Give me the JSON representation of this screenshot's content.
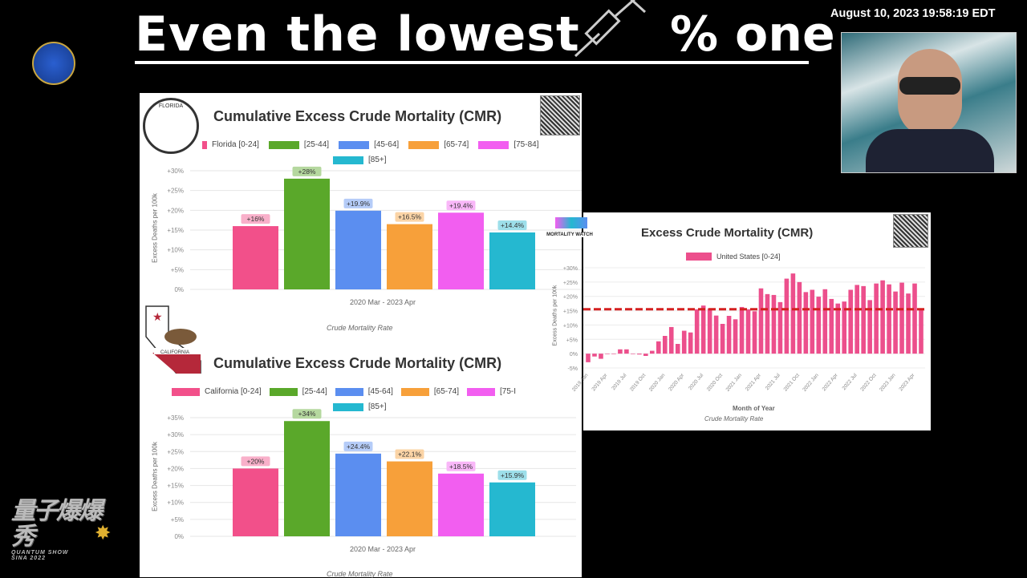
{
  "header": {
    "title_left": "Even the lowest",
    "title_right": "% one",
    "timestamp": "August 10, 2023 19:58:19 EDT"
  },
  "brand": {
    "logo_text_cn": "量子爆爆秀",
    "logo_text_en": "QUANTUM SHOW",
    "logo_sub": "SINA 2022"
  },
  "icons": {
    "syringe": "syringe-icon",
    "seal": "atom-seal-icon"
  },
  "chart_data": [
    {
      "type": "bar",
      "title": "Cumulative Excess Crude Mortality (CMR)",
      "badge": "FLORIDA",
      "categories": [
        "Florida [0-24]",
        "[25-44]",
        "[45-64]",
        "[65-74]",
        "[75-84]",
        "[85+]"
      ],
      "values": [
        16,
        28,
        19.9,
        16.5,
        19.4,
        14.4
      ],
      "labels": [
        "+16%",
        "+28%",
        "+19.9%",
        "+16.5%",
        "+19.4%",
        "+14.4%"
      ],
      "colors": [
        "#f2508a",
        "#5aa82a",
        "#5b8ef0",
        "#f7a03a",
        "#f25ef0",
        "#25b8d0"
      ],
      "ticks": [
        "0%",
        "+5%",
        "+10%",
        "+15%",
        "+20%",
        "+25%",
        "+30%"
      ],
      "ylim": [
        0,
        30
      ],
      "xlabel": "2020 Mar - 2023 Apr",
      "ylabel": "Excess Deaths per 100k",
      "caption": "Crude Mortality Rate"
    },
    {
      "type": "bar",
      "title": "Cumulative Excess Crude Mortality (CMR)",
      "badge": "CALIFORNIA",
      "categories": [
        "California [0-24]",
        "[25-44]",
        "[45-64]",
        "[65-74]",
        "[75-I",
        "[85+]"
      ],
      "values": [
        20,
        34,
        24.4,
        22.1,
        18.5,
        15.9
      ],
      "labels": [
        "+20%",
        "+34%",
        "+24.4%",
        "+22.1%",
        "+18.5%",
        "+15.9%"
      ],
      "colors": [
        "#f2508a",
        "#5aa82a",
        "#5b8ef0",
        "#f7a03a",
        "#f25ef0",
        "#25b8d0"
      ],
      "ticks": [
        "0%",
        "+5%",
        "+10%",
        "+15%",
        "+20%",
        "+25%",
        "+30%",
        "+35%"
      ],
      "ylim": [
        0,
        35
      ],
      "xlabel": "2020 Mar - 2023 Apr",
      "ylabel": "Excess Deaths per 100k",
      "caption": "Crude Mortality Rate"
    },
    {
      "type": "bar",
      "title": "Excess Crude Mortality (CMR)",
      "brand": "MORTALITY WATCH",
      "legend": "United States [0-24]",
      "color": "#ec4f8c",
      "reference_line": 15.5,
      "reference_color": "#d42020",
      "values": [
        -3,
        -1,
        -1.8,
        0,
        0,
        1.5,
        1.5,
        0,
        -0.3,
        -0.8,
        1,
        4.3,
        6.2,
        9.3,
        3.4,
        8,
        7.4,
        15.5,
        16.8,
        15.8,
        13.3,
        10.4,
        13.2,
        12,
        16.3,
        15.5,
        14.8,
        22.8,
        20.8,
        20.5,
        18,
        26.2,
        28,
        25,
        21.5,
        22.3,
        19.9,
        22.5,
        19.1,
        17.5,
        18.2,
        22.3,
        24,
        23.6,
        18.7,
        24.5,
        25.6,
        24.2,
        21.7,
        24.8,
        21,
        24.5,
        15.5
      ],
      "xticks": [
        "2019 Jan",
        "2019 Apr",
        "2019 Jul",
        "2019 Oct",
        "2020 Jan",
        "2020 Apr",
        "2020 Jul",
        "2020 Oct",
        "2021 Jan",
        "2021 Apr",
        "2021 Jul",
        "2021 Oct",
        "2022 Jan",
        "2022 Apr",
        "2022 Jul",
        "2022 Oct",
        "2023 Jan",
        "2023 Apr"
      ],
      "ticks": [
        "-5%",
        "0%",
        "+5%",
        "+10%",
        "+15%",
        "+20%",
        "+25%",
        "+30%"
      ],
      "ylim": [
        -5,
        30
      ],
      "xlabel": "Month of Year",
      "ylabel": "Excess Deaths per 100k",
      "caption": "Crude Mortality Rate"
    }
  ]
}
